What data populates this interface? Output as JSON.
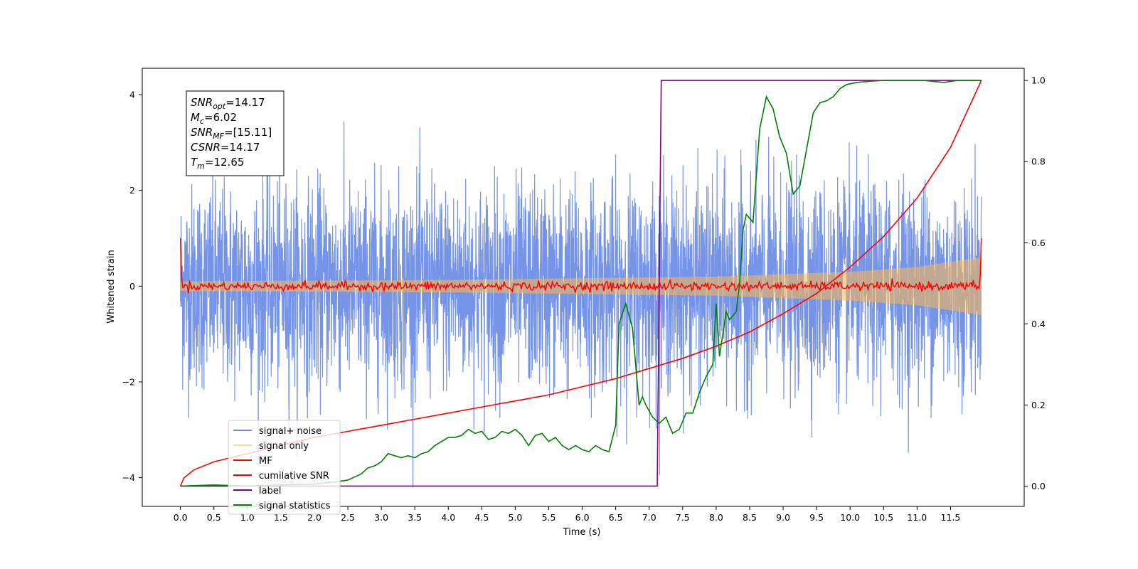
{
  "chart_data": {
    "type": "line",
    "xlabel": "Time (s)",
    "ylabel": "Whitened strain",
    "xlim": [
      -0.57,
      12.6
    ],
    "ylim_left": [
      -4.6,
      4.55
    ],
    "ylim_right": [
      -0.05,
      1.03
    ],
    "x_ticks": [
      0.0,
      0.5,
      1.0,
      1.5,
      2.0,
      2.5,
      3.0,
      3.5,
      4.0,
      4.5,
      5.0,
      5.5,
      6.0,
      6.5,
      7.0,
      7.5,
      8.0,
      8.5,
      9.0,
      9.5,
      10.0,
      10.5,
      11.0,
      11.5
    ],
    "x_tick_labels": [
      "0.0",
      "0.5",
      "1.0",
      "1.5",
      "2.0",
      "2.5",
      "3.0",
      "3.5",
      "4.0",
      "4.5",
      "5.0",
      "5.5",
      "6.0",
      "6.5",
      "7.0",
      "7.5",
      "8.0",
      "8.5",
      "9.0",
      "9.5",
      "10.0",
      "10.5",
      "11.0",
      "11.5"
    ],
    "y_ticks_left": [
      -4,
      -2,
      0,
      2,
      4
    ],
    "y_tick_labels_left": [
      "−4",
      "−2",
      "0",
      "2",
      "4"
    ],
    "y_ticks_right": [
      0.0,
      0.2,
      0.4,
      0.6,
      0.8,
      1.0
    ],
    "y_tick_labels_right": [
      "0.0",
      "0.2",
      "0.4",
      "0.6",
      "0.8",
      "1.0"
    ],
    "grid": false,
    "legend_placement": "lower-left",
    "info_box": [
      {
        "base": "SNR",
        "sub": "opt",
        "value": "=14.17"
      },
      {
        "base": "M",
        "sub": "c",
        "value": "=6.02"
      },
      {
        "base": "SNR",
        "sub": "MF",
        "value": "=[15.11]"
      },
      {
        "base": "CSNR",
        "sub": "",
        "value": "=14.17"
      },
      {
        "base": "T",
        "sub": "m",
        "value": "=12.65"
      }
    ],
    "series": [
      {
        "name": "signal+ noise",
        "axis": "left",
        "color": "#6f8ee6",
        "form": "noise",
        "x_range": [
          0.0,
          11.96
        ],
        "envelope_at_extremes": [
          -4.2,
          3.8
        ]
      },
      {
        "name": "signal only",
        "axis": "left",
        "color": "#ffb84d",
        "form": "chirp",
        "x_range": [
          0.0,
          11.96
        ],
        "amplitude_points": [
          [
            0.0,
            0.1
          ],
          [
            4.0,
            0.13
          ],
          [
            8.0,
            0.2
          ],
          [
            10.0,
            0.3
          ],
          [
            11.0,
            0.4
          ],
          [
            11.96,
            0.6
          ]
        ]
      },
      {
        "name": "MF",
        "axis": "left",
        "color": "#ff0000",
        "form": "noise",
        "x_range": [
          0.0,
          11.96
        ],
        "approx_range": [
          -0.1,
          0.1
        ],
        "edge_spikes": [
          1.0,
          1.0
        ]
      },
      {
        "name": "cumilative SNR",
        "axis": "right",
        "color": "#ff0000",
        "x": [
          0.0,
          0.05,
          0.2,
          0.5,
          1.0,
          1.5,
          2.0,
          2.5,
          3.0,
          3.5,
          4.0,
          4.5,
          5.0,
          5.5,
          6.0,
          6.5,
          7.0,
          7.5,
          8.0,
          8.5,
          9.0,
          9.5,
          10.0,
          10.5,
          11.0,
          11.5,
          11.96
        ],
        "y": [
          0.0,
          0.02,
          0.04,
          0.06,
          0.08,
          0.1,
          0.12,
          0.135,
          0.15,
          0.165,
          0.18,
          0.195,
          0.21,
          0.225,
          0.245,
          0.265,
          0.29,
          0.315,
          0.345,
          0.38,
          0.425,
          0.475,
          0.54,
          0.615,
          0.71,
          0.835,
          1.0
        ]
      },
      {
        "name": "label",
        "axis": "right",
        "color": "#800080",
        "x": [
          0.0,
          7.12,
          7.18,
          11.96
        ],
        "y": [
          0.0,
          0.0,
          1.0,
          1.0
        ]
      },
      {
        "name": "signal statistics",
        "axis": "right",
        "color": "#008000",
        "x": [
          0.0,
          0.5,
          1.0,
          1.5,
          2.0,
          2.3,
          2.5,
          2.7,
          2.8,
          2.9,
          3.0,
          3.1,
          3.2,
          3.3,
          3.4,
          3.5,
          3.6,
          3.7,
          3.8,
          3.9,
          4.0,
          4.1,
          4.2,
          4.3,
          4.4,
          4.5,
          4.6,
          4.7,
          4.8,
          4.9,
          5.0,
          5.1,
          5.2,
          5.3,
          5.4,
          5.5,
          5.6,
          5.7,
          5.8,
          5.9,
          6.0,
          6.1,
          6.2,
          6.3,
          6.4,
          6.5,
          6.55,
          6.65,
          6.75,
          6.85,
          6.9,
          6.95,
          7.05,
          7.15,
          7.25,
          7.35,
          7.45,
          7.55,
          7.65,
          7.75,
          7.85,
          7.95,
          8.0,
          8.05,
          8.15,
          8.2,
          8.3,
          8.35,
          8.4,
          8.45,
          8.55,
          8.65,
          8.75,
          8.85,
          8.95,
          9.05,
          9.15,
          9.25,
          9.35,
          9.45,
          9.55,
          9.65,
          9.75,
          9.85,
          9.95,
          10.1,
          10.3,
          10.5,
          10.8,
          11.1,
          11.4,
          11.6,
          11.96
        ],
        "y": [
          0.0,
          0.003,
          0.0,
          0.003,
          0.005,
          0.01,
          0.015,
          0.03,
          0.045,
          0.05,
          0.06,
          0.08,
          0.075,
          0.07,
          0.075,
          0.07,
          0.08,
          0.085,
          0.1,
          0.11,
          0.12,
          0.12,
          0.125,
          0.14,
          0.13,
          0.135,
          0.115,
          0.12,
          0.135,
          0.13,
          0.14,
          0.125,
          0.1,
          0.125,
          0.13,
          0.11,
          0.12,
          0.1,
          0.09,
          0.1,
          0.09,
          0.085,
          0.1,
          0.09,
          0.085,
          0.15,
          0.4,
          0.45,
          0.39,
          0.2,
          0.22,
          0.2,
          0.17,
          0.155,
          0.17,
          0.13,
          0.14,
          0.18,
          0.18,
          0.23,
          0.27,
          0.3,
          0.45,
          0.32,
          0.43,
          0.41,
          0.43,
          0.5,
          0.63,
          0.67,
          0.65,
          0.88,
          0.96,
          0.93,
          0.86,
          0.82,
          0.72,
          0.74,
          0.83,
          0.92,
          0.945,
          0.95,
          0.96,
          0.98,
          0.99,
          0.995,
          0.998,
          1.0,
          1.0,
          1.0,
          0.995,
          1.0,
          1.0
        ]
      }
    ]
  }
}
